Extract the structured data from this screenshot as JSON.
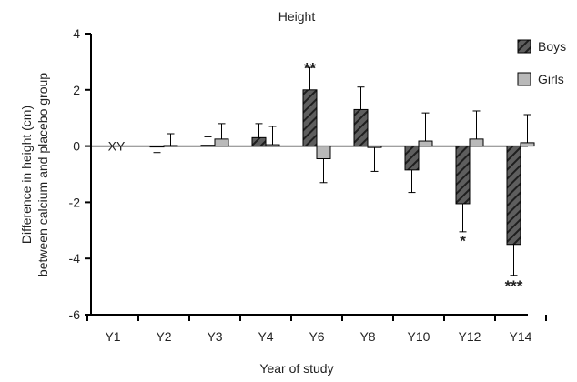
{
  "chart_data": {
    "type": "bar",
    "title": "Height",
    "xlabel": "Year of study",
    "ylabel": [
      "Difference in height  (cm)",
      "between calcium and placebo group"
    ],
    "categories": [
      "Y1",
      "Y2",
      "Y3",
      "Y4",
      "Y6",
      "Y8",
      "Y10",
      "Y12",
      "Y14"
    ],
    "series": [
      {
        "name": "Boys",
        "values": [
          0,
          -0.03,
          0.03,
          0.3,
          2.0,
          1.3,
          -0.85,
          -2.05,
          -3.5
        ],
        "errors": [
          0,
          0.2,
          0.3,
          0.5,
          0.8,
          0.8,
          0.8,
          1.0,
          1.1
        ]
      },
      {
        "name": "Girls",
        "values": [
          0,
          0.02,
          0.25,
          0.05,
          -0.45,
          -0.05,
          0.18,
          0.25,
          0.12
        ],
        "errors": [
          0,
          0.42,
          0.55,
          0.65,
          0.85,
          0.85,
          1.0,
          1.0,
          1.0
        ]
      }
    ],
    "yticks": [
      4,
      2,
      0,
      -2,
      -4,
      -6
    ],
    "ylim": [
      -6,
      4
    ],
    "grid": false,
    "legend": "top-right",
    "annotations": [
      {
        "text": "XY",
        "category": "Y1",
        "y": 0
      },
      {
        "text": "**",
        "category": "Y6",
        "y": 2.85
      },
      {
        "text": "*",
        "category": "Y12",
        "y": -3.3
      },
      {
        "text": "***",
        "category": "Y14",
        "y": -4.9
      }
    ],
    "colors": {
      "boys_fill": "#5e5e5e",
      "boys_stripe": "#1e1e1e",
      "girls_fill": "#b9b9b9"
    }
  }
}
